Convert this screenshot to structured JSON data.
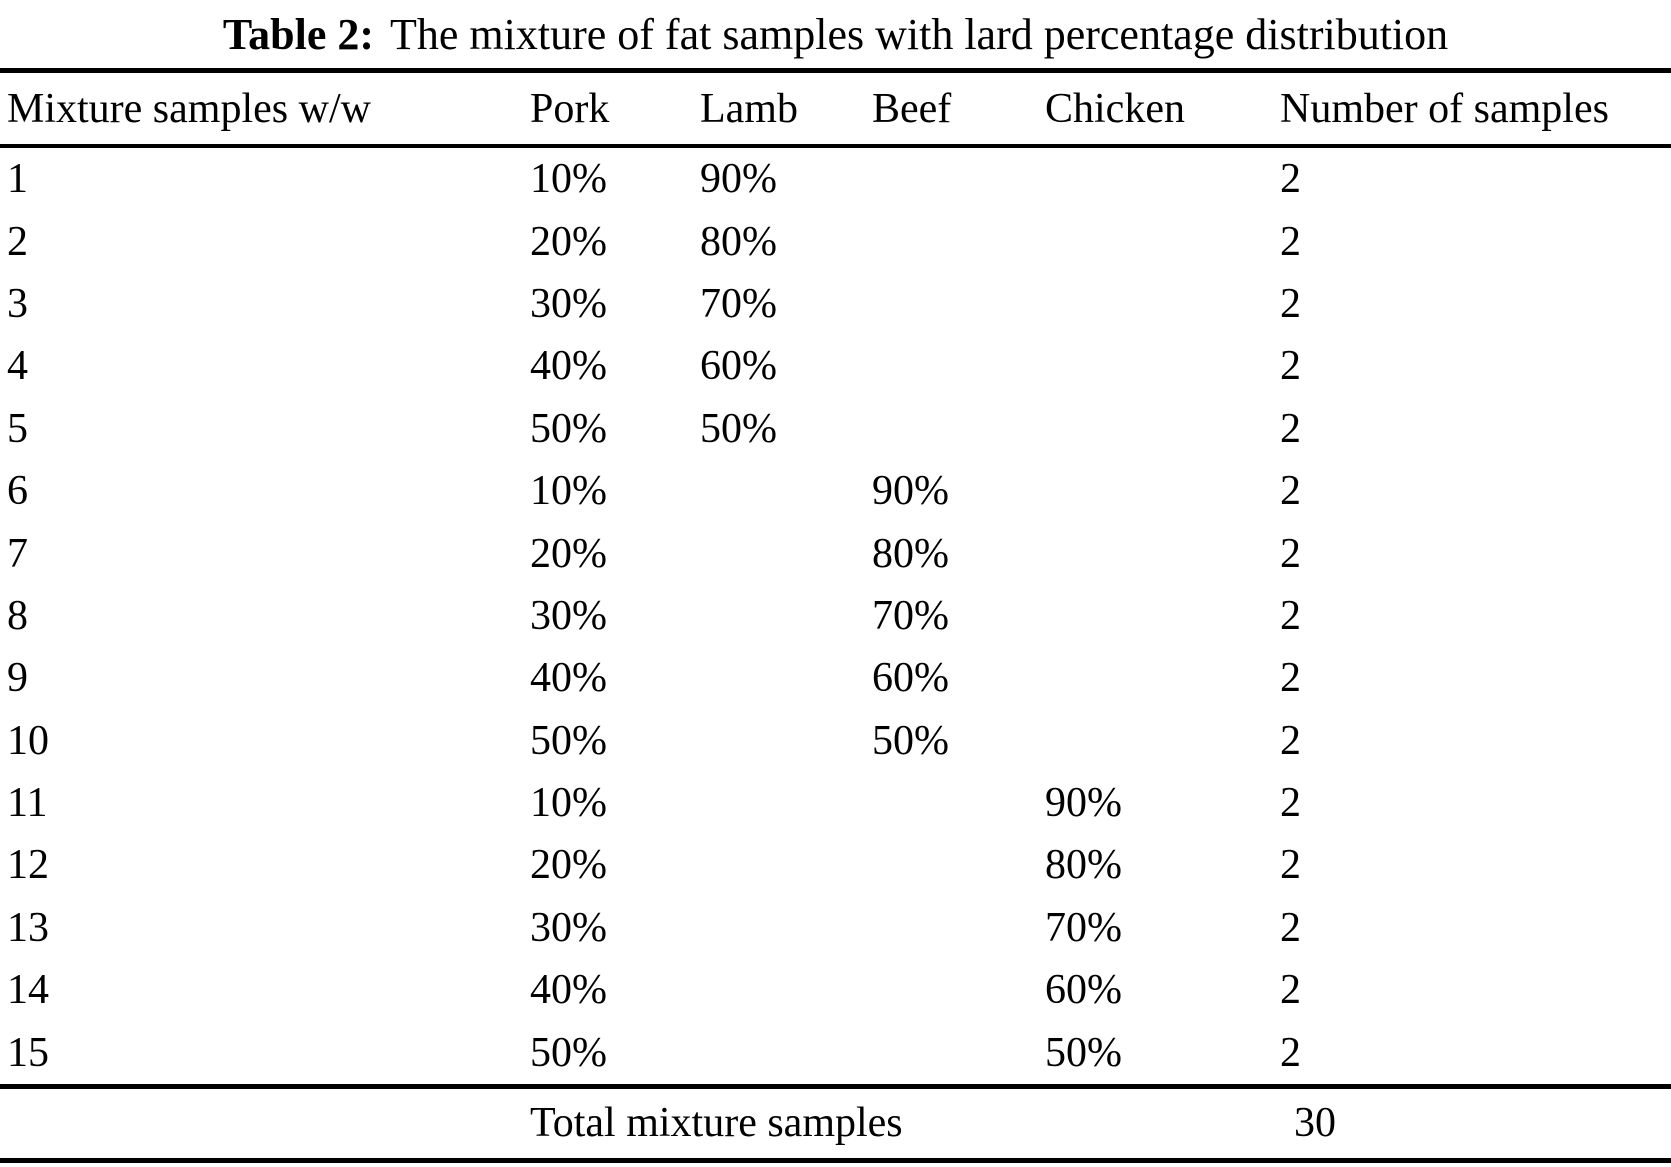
{
  "title": {
    "label": "Table 2:",
    "text": "The mixture of fat samples with lard percentage distribution"
  },
  "table": {
    "columns": [
      "Mixture samples w/w",
      "Pork",
      "Lamb",
      "Beef",
      "Chicken",
      "Number of samples"
    ],
    "rows": [
      {
        "id": "1",
        "pork": "10%",
        "lamb": "90%",
        "beef": "",
        "chicken": "",
        "count": "2"
      },
      {
        "id": "2",
        "pork": "20%",
        "lamb": "80%",
        "beef": "",
        "chicken": "",
        "count": "2"
      },
      {
        "id": "3",
        "pork": "30%",
        "lamb": "70%",
        "beef": "",
        "chicken": "",
        "count": "2"
      },
      {
        "id": "4",
        "pork": "40%",
        "lamb": "60%",
        "beef": "",
        "chicken": "",
        "count": "2"
      },
      {
        "id": "5",
        "pork": "50%",
        "lamb": "50%",
        "beef": "",
        "chicken": "",
        "count": "2"
      },
      {
        "id": "6",
        "pork": "10%",
        "lamb": "",
        "beef": "90%",
        "chicken": "",
        "count": "2"
      },
      {
        "id": "7",
        "pork": "20%",
        "lamb": "",
        "beef": "80%",
        "chicken": "",
        "count": "2"
      },
      {
        "id": "8",
        "pork": "30%",
        "lamb": "",
        "beef": "70%",
        "chicken": "",
        "count": "2"
      },
      {
        "id": "9",
        "pork": "40%",
        "lamb": "",
        "beef": "60%",
        "chicken": "",
        "count": "2"
      },
      {
        "id": "10",
        "pork": "50%",
        "lamb": "",
        "beef": "50%",
        "chicken": "",
        "count": "2"
      },
      {
        "id": "11",
        "pork": "10%",
        "lamb": "",
        "beef": "",
        "chicken": "90%",
        "count": "2"
      },
      {
        "id": "12",
        "pork": "20%",
        "lamb": "",
        "beef": "",
        "chicken": "80%",
        "count": "2"
      },
      {
        "id": "13",
        "pork": "30%",
        "lamb": "",
        "beef": "",
        "chicken": "70%",
        "count": "2"
      },
      {
        "id": "14",
        "pork": "40%",
        "lamb": "",
        "beef": "",
        "chicken": "60%",
        "count": "2"
      },
      {
        "id": "15",
        "pork": "50%",
        "lamb": "",
        "beef": "",
        "chicken": "50%",
        "count": "2"
      }
    ],
    "footer": {
      "label": "Total mixture samples",
      "total": "30"
    }
  }
}
